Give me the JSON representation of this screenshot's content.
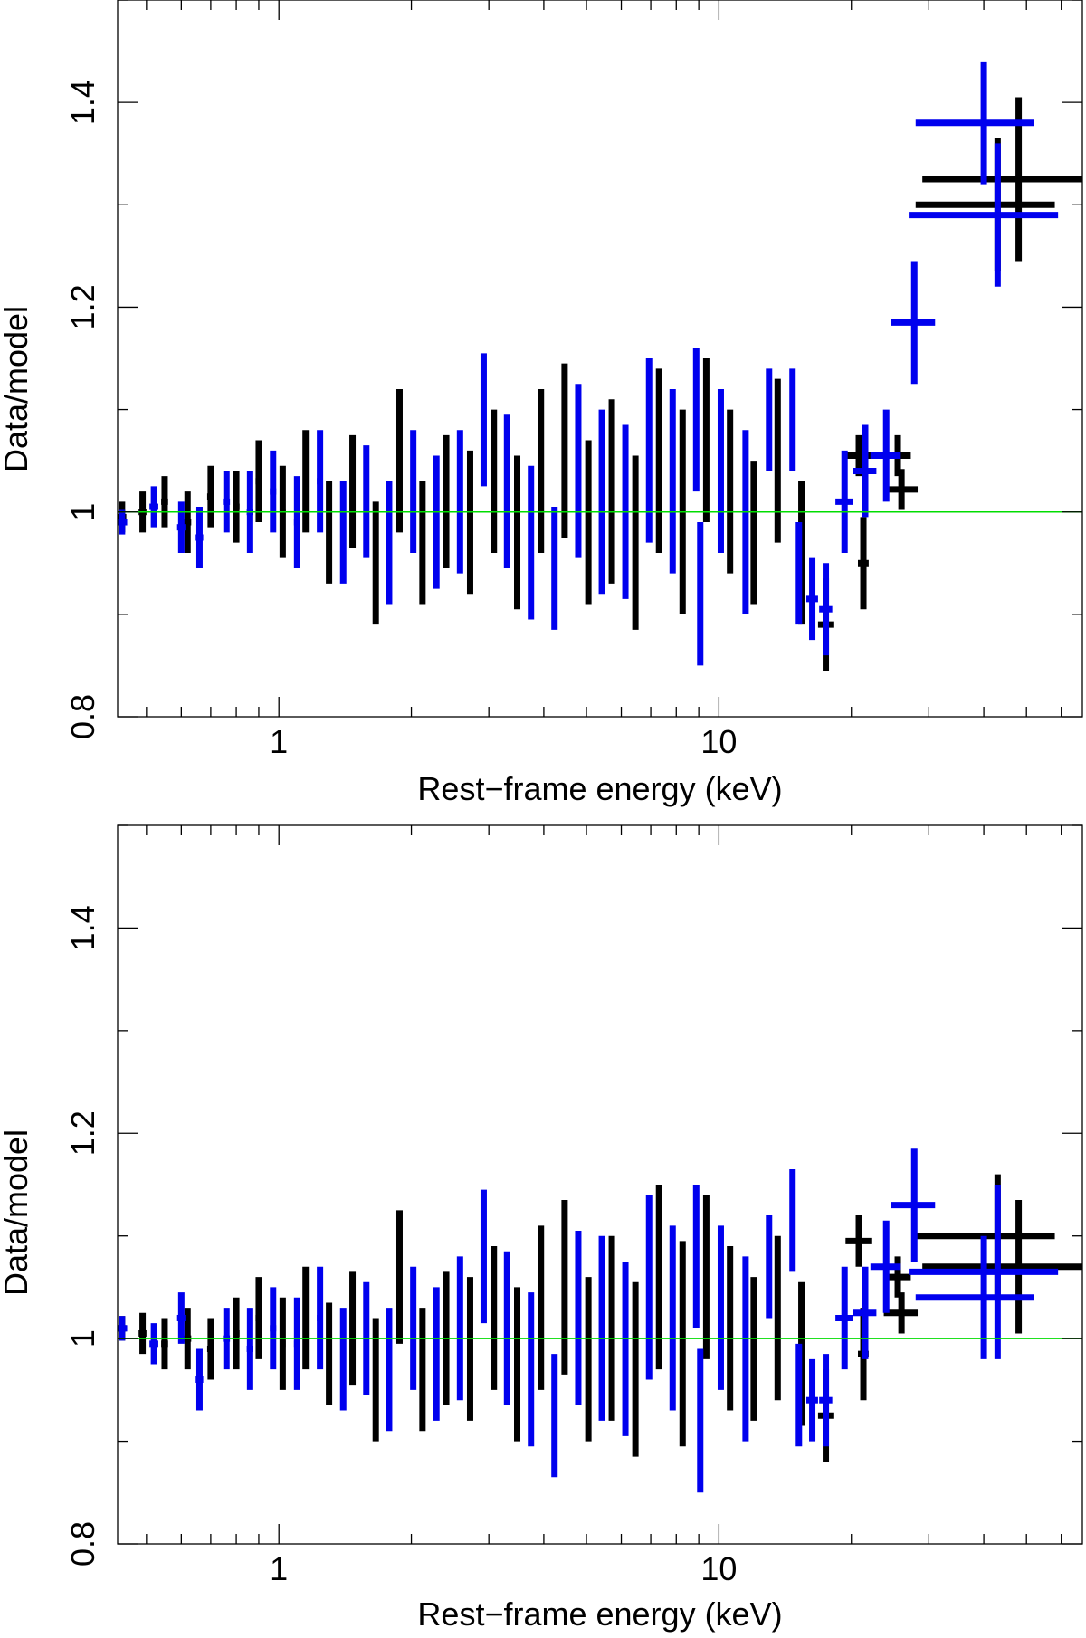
{
  "chart_data": [
    {
      "type": "scatter",
      "panel": "top",
      "xlabel": "Rest−frame energy (keV)",
      "ylabel": "Data/model",
      "xscale": "log",
      "xlim": [
        0.43,
        67
      ],
      "ylim": [
        0.8,
        1.5
      ],
      "xticks": [
        {
          "v": 1,
          "label": "1"
        },
        {
          "v": 10,
          "label": "10"
        }
      ],
      "yticks": [
        {
          "v": 0.8,
          "label": "0.8"
        },
        {
          "v": 1.0,
          "label": "1"
        },
        {
          "v": 1.2,
          "label": "1.2"
        },
        {
          "v": 1.4,
          "label": "1.4"
        }
      ],
      "reference_line": 1.0,
      "colors": {
        "series_black": "#000000",
        "series_blue": "#0000ee",
        "reference": "#00dd00"
      },
      "series": [
        {
          "color": "#000000",
          "points": [
            [
              0.44,
              0.995,
              0.015,
              0.01
            ],
            [
              0.49,
              1.0,
              0.02,
              0.01
            ],
            [
              0.55,
              1.01,
              0.025,
              0.01
            ],
            [
              0.62,
              0.99,
              0.03,
              0.012
            ],
            [
              0.7,
              1.015,
              0.03,
              0.013
            ],
            [
              0.8,
              1.005,
              0.035,
              0.014
            ],
            [
              0.9,
              1.03,
              0.04,
              0.015
            ],
            [
              1.02,
              1.0,
              0.045,
              0.016
            ],
            [
              1.15,
              1.03,
              0.05,
              0.017
            ],
            [
              1.3,
              0.98,
              0.05,
              0.018
            ],
            [
              1.47,
              1.02,
              0.055,
              0.02
            ],
            [
              1.66,
              0.95,
              0.06,
              0.022
            ],
            [
              1.88,
              1.05,
              0.07,
              0.025
            ],
            [
              2.12,
              0.97,
              0.06,
              0.028
            ],
            [
              2.4,
              1.01,
              0.065,
              0.03
            ],
            [
              2.72,
              0.99,
              0.07,
              0.034
            ],
            [
              3.08,
              1.03,
              0.07,
              0.038
            ],
            [
              3.48,
              0.98,
              0.075,
              0.043
            ],
            [
              3.94,
              1.04,
              0.08,
              0.048
            ],
            [
              4.46,
              1.06,
              0.085,
              0.054
            ],
            [
              5.05,
              0.99,
              0.08,
              0.061
            ],
            [
              5.71,
              1.02,
              0.09,
              0.069
            ],
            [
              6.46,
              0.97,
              0.085,
              0.078
            ],
            [
              7.31,
              1.05,
              0.09,
              0.088
            ],
            [
              8.27,
              1.0,
              0.1,
              0.1
            ],
            [
              9.36,
              1.07,
              0.08,
              0.11
            ],
            [
              10.6,
              1.02,
              0.08,
              0.12
            ],
            [
              12.0,
              0.98,
              0.07,
              0.14
            ],
            [
              13.6,
              1.05,
              0.08,
              0.16
            ],
            [
              15.4,
              0.96,
              0.07,
              0.2
            ],
            [
              17.5,
              0.89,
              0.045,
              0.7
            ],
            [
              20.8,
              1.055,
              0.02,
              1.4
            ],
            [
              21.3,
              0.95,
              0.045,
              0.6
            ],
            [
              25.5,
              1.055,
              0.02,
              1.8
            ],
            [
              26.0,
              1.022,
              0.02,
              2.3
            ],
            [
              43.0,
              1.3,
              0.065,
              15.0
            ],
            [
              48.0,
              1.325,
              0.08,
              19.0
            ]
          ]
        },
        {
          "color": "#0000ee",
          "points": [
            [
              0.44,
              0.99,
              0.012,
              0.012
            ],
            [
              0.52,
              1.005,
              0.02,
              0.012
            ],
            [
              0.6,
              0.985,
              0.025,
              0.013
            ],
            [
              0.66,
              0.975,
              0.03,
              0.013
            ],
            [
              0.76,
              1.01,
              0.03,
              0.014
            ],
            [
              0.86,
              1.0,
              0.04,
              0.015
            ],
            [
              0.97,
              1.02,
              0.04,
              0.016
            ],
            [
              1.1,
              0.99,
              0.045,
              0.018
            ],
            [
              1.24,
              1.03,
              0.05,
              0.02
            ],
            [
              1.4,
              0.98,
              0.05,
              0.021
            ],
            [
              1.58,
              1.01,
              0.055,
              0.023
            ],
            [
              1.78,
              0.97,
              0.06,
              0.025
            ],
            [
              2.02,
              1.02,
              0.06,
              0.028
            ],
            [
              2.28,
              0.99,
              0.065,
              0.031
            ],
            [
              2.58,
              1.01,
              0.07,
              0.035
            ],
            [
              2.92,
              1.09,
              0.065,
              0.04
            ],
            [
              3.3,
              1.02,
              0.075,
              0.045
            ],
            [
              3.74,
              0.97,
              0.075,
              0.05
            ],
            [
              4.23,
              0.945,
              0.06,
              0.055
            ],
            [
              4.79,
              1.04,
              0.085,
              0.062
            ],
            [
              5.42,
              1.01,
              0.09,
              0.07
            ],
            [
              6.13,
              1.0,
              0.085,
              0.08
            ],
            [
              6.94,
              1.06,
              0.09,
              0.09
            ],
            [
              7.85,
              1.03,
              0.09,
              0.1
            ],
            [
              8.88,
              1.09,
              0.07,
              0.11
            ],
            [
              9.07,
              0.92,
              0.07,
              0.12
            ],
            [
              10.1,
              1.04,
              0.08,
              0.13
            ],
            [
              11.5,
              0.99,
              0.09,
              0.15
            ],
            [
              13.0,
              1.09,
              0.05,
              0.16
            ],
            [
              14.7,
              1.09,
              0.05,
              0.2
            ],
            [
              15.2,
              0.94,
              0.05,
              0.2
            ],
            [
              16.3,
              0.915,
              0.04,
              0.5
            ],
            [
              17.5,
              0.905,
              0.045,
              0.6
            ],
            [
              19.3,
              1.01,
              0.05,
              0.9
            ],
            [
              21.5,
              1.04,
              0.045,
              1.3
            ],
            [
              24.0,
              1.055,
              0.045,
              1.9
            ],
            [
              27.8,
              1.185,
              0.06,
              3.2
            ],
            [
              40.0,
              1.38,
              0.06,
              12.0
            ],
            [
              43.0,
              1.29,
              0.07,
              16.0
            ]
          ]
        }
      ]
    },
    {
      "type": "scatter",
      "panel": "bottom",
      "xlabel": "Rest−frame energy (keV)",
      "ylabel": "Data/model",
      "xscale": "log",
      "xlim": [
        0.43,
        67
      ],
      "ylim": [
        0.8,
        1.5
      ],
      "xticks": [
        {
          "v": 1,
          "label": "1"
        },
        {
          "v": 10,
          "label": "10"
        }
      ],
      "yticks": [
        {
          "v": 0.8,
          "label": "0.8"
        },
        {
          "v": 1.0,
          "label": "1"
        },
        {
          "v": 1.2,
          "label": "1.2"
        },
        {
          "v": 1.4,
          "label": "1.4"
        }
      ],
      "reference_line": 1.0,
      "colors": {
        "series_black": "#000000",
        "series_blue": "#0000ee",
        "reference": "#00dd00"
      },
      "series": [
        {
          "color": "#000000",
          "points": [
            [
              0.44,
              1.01,
              0.012,
              0.01
            ],
            [
              0.49,
              1.005,
              0.02,
              0.01
            ],
            [
              0.55,
              0.995,
              0.025,
              0.01
            ],
            [
              0.62,
              1.0,
              0.03,
              0.012
            ],
            [
              0.7,
              0.99,
              0.03,
              0.013
            ],
            [
              0.8,
              1.005,
              0.035,
              0.014
            ],
            [
              0.9,
              1.02,
              0.04,
              0.015
            ],
            [
              1.02,
              0.995,
              0.045,
              0.016
            ],
            [
              1.15,
              1.02,
              0.05,
              0.017
            ],
            [
              1.3,
              0.985,
              0.05,
              0.018
            ],
            [
              1.47,
              1.01,
              0.055,
              0.02
            ],
            [
              1.66,
              0.96,
              0.06,
              0.022
            ],
            [
              1.88,
              1.06,
              0.065,
              0.025
            ],
            [
              2.12,
              0.97,
              0.06,
              0.028
            ],
            [
              2.4,
              1.0,
              0.065,
              0.03
            ],
            [
              2.72,
              0.99,
              0.07,
              0.034
            ],
            [
              3.08,
              1.02,
              0.07,
              0.038
            ],
            [
              3.48,
              0.975,
              0.075,
              0.043
            ],
            [
              3.94,
              1.03,
              0.08,
              0.048
            ],
            [
              4.46,
              1.05,
              0.085,
              0.054
            ],
            [
              5.05,
              0.98,
              0.08,
              0.061
            ],
            [
              5.71,
              1.01,
              0.09,
              0.069
            ],
            [
              6.46,
              0.97,
              0.085,
              0.078
            ],
            [
              7.31,
              1.06,
              0.09,
              0.088
            ],
            [
              8.27,
              0.995,
              0.1,
              0.1
            ],
            [
              9.36,
              1.06,
              0.08,
              0.11
            ],
            [
              10.6,
              1.01,
              0.08,
              0.12
            ],
            [
              12.0,
              0.99,
              0.07,
              0.14
            ],
            [
              13.6,
              1.02,
              0.08,
              0.16
            ],
            [
              15.4,
              0.985,
              0.07,
              0.2
            ],
            [
              17.5,
              0.925,
              0.045,
              0.7
            ],
            [
              20.8,
              1.095,
              0.025,
              1.4
            ],
            [
              21.3,
              0.985,
              0.045,
              0.6
            ],
            [
              25.5,
              1.06,
              0.02,
              1.8
            ],
            [
              26.0,
              1.025,
              0.02,
              2.3
            ],
            [
              43.0,
              1.1,
              0.06,
              15.0
            ],
            [
              48.0,
              1.07,
              0.065,
              19.0
            ]
          ]
        },
        {
          "color": "#0000ee",
          "points": [
            [
              0.44,
              1.01,
              0.012,
              0.012
            ],
            [
              0.52,
              0.995,
              0.02,
              0.012
            ],
            [
              0.6,
              1.02,
              0.025,
              0.013
            ],
            [
              0.66,
              0.96,
              0.03,
              0.013
            ],
            [
              0.76,
              1.0,
              0.03,
              0.014
            ],
            [
              0.86,
              0.99,
              0.04,
              0.015
            ],
            [
              0.97,
              1.01,
              0.04,
              0.016
            ],
            [
              1.1,
              0.995,
              0.045,
              0.018
            ],
            [
              1.24,
              1.02,
              0.05,
              0.02
            ],
            [
              1.4,
              0.98,
              0.05,
              0.021
            ],
            [
              1.58,
              1.0,
              0.055,
              0.023
            ],
            [
              1.78,
              0.97,
              0.06,
              0.025
            ],
            [
              2.02,
              1.01,
              0.06,
              0.028
            ],
            [
              2.28,
              0.985,
              0.065,
              0.031
            ],
            [
              2.58,
              1.01,
              0.07,
              0.035
            ],
            [
              2.92,
              1.08,
              0.065,
              0.04
            ],
            [
              3.3,
              1.01,
              0.075,
              0.045
            ],
            [
              3.74,
              0.97,
              0.075,
              0.05
            ],
            [
              4.23,
              0.925,
              0.06,
              0.055
            ],
            [
              4.79,
              1.02,
              0.085,
              0.062
            ],
            [
              5.42,
              1.01,
              0.09,
              0.07
            ],
            [
              6.13,
              0.99,
              0.085,
              0.08
            ],
            [
              6.94,
              1.05,
              0.09,
              0.09
            ],
            [
              7.85,
              1.02,
              0.09,
              0.1
            ],
            [
              8.88,
              1.08,
              0.07,
              0.11
            ],
            [
              9.07,
              0.92,
              0.07,
              0.12
            ],
            [
              10.1,
              1.03,
              0.08,
              0.13
            ],
            [
              11.5,
              0.99,
              0.09,
              0.15
            ],
            [
              13.0,
              1.07,
              0.05,
              0.16
            ],
            [
              14.7,
              1.115,
              0.05,
              0.2
            ],
            [
              15.2,
              0.945,
              0.05,
              0.2
            ],
            [
              16.3,
              0.94,
              0.04,
              0.5
            ],
            [
              17.5,
              0.94,
              0.045,
              0.6
            ],
            [
              19.3,
              1.02,
              0.05,
              0.9
            ],
            [
              21.5,
              1.025,
              0.045,
              1.3
            ],
            [
              24.0,
              1.07,
              0.045,
              1.9
            ],
            [
              27.8,
              1.13,
              0.055,
              3.2
            ],
            [
              40.0,
              1.04,
              0.06,
              12.0
            ],
            [
              43.0,
              1.065,
              0.085,
              16.0
            ]
          ]
        }
      ]
    }
  ]
}
